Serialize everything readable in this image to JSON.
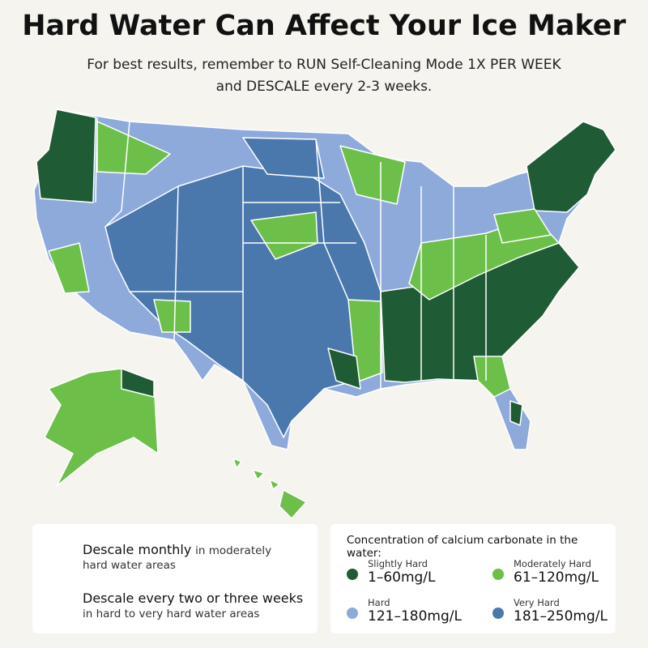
{
  "header": {
    "title": "Hard Water Can Affect Your Ice Maker",
    "subtitle_lines": [
      "For best results, remember to RUN Self-Cleaning Mode 1X PER WEEK",
      "and DESCALE every 2-3 weeks."
    ]
  },
  "advice": [
    {
      "heading": "Descale monthly",
      "detail_lines": [
        "in moderately",
        "hard water areas"
      ]
    },
    {
      "heading": "Descale every two or three weeks",
      "detail_lines": [
        "in hard to very hard water areas"
      ]
    }
  ],
  "legend": {
    "title": "Concentration of calcium carbonate in the water:",
    "items": [
      {
        "label": "Slightly Hard",
        "range": "1–60mg/L",
        "color": "#1f5b34"
      },
      {
        "label": "Moderately Hard",
        "range": "61–120mg/L",
        "color": "#6cc04a"
      },
      {
        "label": "Hard",
        "range": "121–180mg/L",
        "color": "#8eaadb"
      },
      {
        "label": "Very Hard",
        "range": "181–250mg/L",
        "color": "#4a78ad"
      }
    ]
  }
}
